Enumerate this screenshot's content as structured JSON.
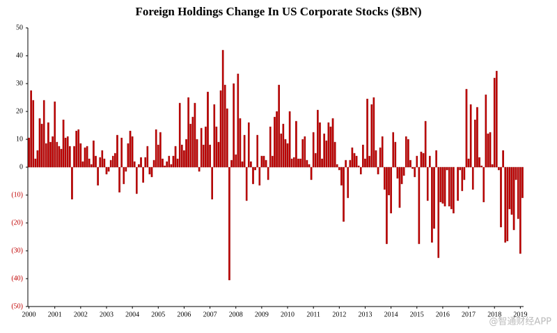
{
  "chart_data": {
    "type": "bar",
    "title": "Foreign Holdings Change In US Corporate Stocks ($BN)",
    "watermark": "@智通财经APP",
    "color": "#c00000",
    "negative_tick_color": "#c00000",
    "ylim": [
      -50,
      50
    ],
    "yticks": [
      {
        "value": -50,
        "label": "(50)"
      },
      {
        "value": -40,
        "label": "(40)"
      },
      {
        "value": -30,
        "label": "(30)"
      },
      {
        "value": -20,
        "label": "(20)"
      },
      {
        "value": -10,
        "label": "(10)"
      },
      0,
      10,
      20,
      30,
      40,
      50
    ],
    "categories": [
      "2000",
      null,
      null,
      null,
      null,
      null,
      null,
      null,
      null,
      null,
      null,
      null,
      "2001",
      null,
      null,
      null,
      null,
      null,
      null,
      null,
      null,
      null,
      null,
      null,
      "2002",
      null,
      null,
      null,
      null,
      null,
      null,
      null,
      null,
      null,
      null,
      null,
      "2003",
      null,
      null,
      null,
      null,
      null,
      null,
      null,
      null,
      null,
      null,
      null,
      "2004",
      null,
      null,
      null,
      null,
      null,
      null,
      null,
      null,
      null,
      null,
      null,
      "2005",
      null,
      null,
      null,
      null,
      null,
      null,
      null,
      null,
      null,
      null,
      null,
      "2006",
      null,
      null,
      null,
      null,
      null,
      null,
      null,
      null,
      null,
      null,
      null,
      "2007",
      null,
      null,
      null,
      null,
      null,
      null,
      null,
      null,
      null,
      null,
      null,
      "2008",
      null,
      null,
      null,
      null,
      null,
      null,
      null,
      null,
      null,
      null,
      null,
      "2009",
      null,
      null,
      null,
      null,
      null,
      null,
      null,
      null,
      null,
      null,
      null,
      "2010",
      null,
      null,
      null,
      null,
      null,
      null,
      null,
      null,
      null,
      null,
      null,
      "2011",
      null,
      null,
      null,
      null,
      null,
      null,
      null,
      null,
      null,
      null,
      null,
      "2012",
      null,
      null,
      null,
      null,
      null,
      null,
      null,
      null,
      null,
      null,
      null,
      "2013",
      null,
      null,
      null,
      null,
      null,
      null,
      null,
      null,
      null,
      null,
      null,
      "2014",
      null,
      null,
      null,
      null,
      null,
      null,
      null,
      null,
      null,
      null,
      null,
      "2015",
      null,
      null,
      null,
      null,
      null,
      null,
      null,
      null,
      null,
      null,
      null,
      "2016",
      null,
      null,
      null,
      null,
      null,
      null,
      null,
      null,
      null,
      null,
      null,
      "2017",
      null,
      null,
      null,
      null,
      null,
      null,
      null,
      null,
      null,
      null,
      null,
      "2018",
      null,
      null,
      null,
      null,
      null,
      null,
      null,
      null,
      null,
      null,
      null,
      "2019",
      null
    ],
    "values": [
      10.5,
      27.5,
      24,
      3,
      6,
      17.5,
      15.5,
      24,
      8.5,
      16,
      9,
      11,
      23.5,
      9,
      7.5,
      6.5,
      17,
      10.5,
      11,
      7.5,
      -11.5,
      7.5,
      13,
      13.5,
      8.5,
      2,
      7,
      7.5,
      3,
      1,
      9.5,
      4,
      -6.5,
      3.5,
      6,
      3,
      -2.5,
      -1.5,
      2.5,
      4,
      5,
      11.5,
      -9,
      10.5,
      -6,
      -1.5,
      8.5,
      13,
      11,
      2,
      -9.5,
      1,
      3.5,
      -5.5,
      3.5,
      7.5,
      -2.5,
      -3.5,
      2.5,
      13.5,
      8,
      12.5,
      3,
      0.5,
      2,
      4,
      1,
      4,
      7.5,
      3,
      23,
      8,
      6,
      10,
      25,
      15.5,
      18,
      23,
      10,
      -1.5,
      14,
      8,
      14.5,
      27,
      8,
      -11.5,
      22.5,
      14.5,
      9,
      27.5,
      42,
      29.5,
      21,
      -40.5,
      2.5,
      30,
      4.5,
      33.5,
      17.5,
      2,
      11.5,
      -12,
      16,
      2,
      -6,
      -1,
      11.5,
      -6.5,
      4,
      4,
      2.5,
      -4.5,
      14.5,
      4,
      18,
      20,
      29.5,
      12,
      15.5,
      10,
      8.5,
      20,
      3,
      3.5,
      16.5,
      3,
      3,
      10,
      11,
      2.5,
      1,
      -4.5,
      12.5,
      5,
      20.5,
      16,
      3,
      12,
      9.5,
      16,
      14.5,
      17.5,
      9,
      1,
      -1,
      -6.5,
      -19.5,
      2.5,
      -11,
      2.5,
      7,
      5,
      4,
      0.5,
      -2.5,
      8,
      3,
      24.5,
      4,
      22.5,
      25,
      6,
      -2.5,
      7,
      11,
      -8,
      -27.5,
      -10,
      -16.5,
      12.5,
      9,
      -4,
      -14.5,
      -6,
      -3,
      11,
      10,
      2.5,
      -0.5,
      -3.5,
      4,
      -27.5,
      5.5,
      5,
      16.5,
      -12,
      4,
      -27,
      -22,
      6,
      -32.5,
      -12.5,
      -13,
      -14,
      -1,
      -14,
      -15,
      -16.5,
      0,
      -12,
      -1,
      -8.5,
      -4.5,
      28,
      3,
      22.5,
      -8,
      17,
      21.5,
      3.5,
      0.5,
      -12.5,
      26,
      12,
      12.5,
      1,
      32,
      34.5,
      -1,
      -21.5,
      6,
      -27,
      -26.5,
      -15,
      -17,
      -22.5,
      -4.5,
      -18.5,
      -31,
      -11
    ]
  }
}
